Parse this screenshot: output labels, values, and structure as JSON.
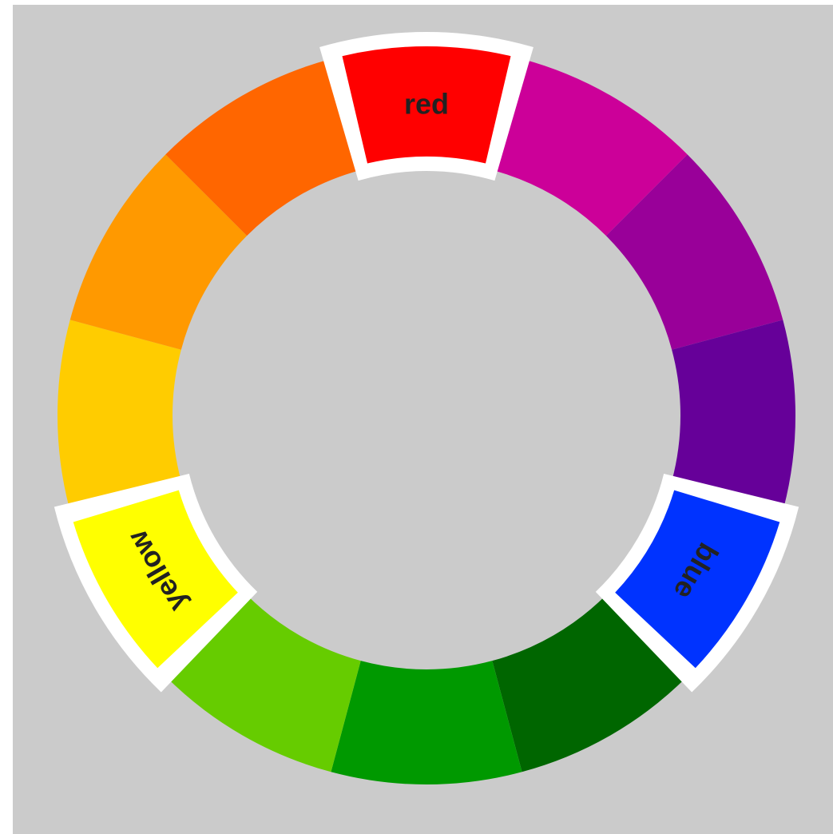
{
  "wheel": {
    "background": "#cbcbcb",
    "highlight_color": "#ffffff",
    "label_color": "#222222",
    "segments": [
      {
        "color": "#ff0000",
        "label": "red",
        "highlighted": true
      },
      {
        "color": "#cc0099",
        "label": "",
        "highlighted": false
      },
      {
        "color": "#990099",
        "label": "",
        "highlighted": false
      },
      {
        "color": "#660099",
        "label": "",
        "highlighted": false
      },
      {
        "color": "#0033ff",
        "label": "blue",
        "highlighted": true
      },
      {
        "color": "#006600",
        "label": "",
        "highlighted": false
      },
      {
        "color": "#009900",
        "label": "",
        "highlighted": false
      },
      {
        "color": "#66cc00",
        "label": "",
        "highlighted": false
      },
      {
        "color": "#ffff00",
        "label": "yellow",
        "highlighted": true
      },
      {
        "color": "#ffcc00",
        "label": "",
        "highlighted": false
      },
      {
        "color": "#ff9900",
        "label": "",
        "highlighted": false
      },
      {
        "color": "#ff6600",
        "label": "",
        "highlighted": false
      }
    ]
  }
}
